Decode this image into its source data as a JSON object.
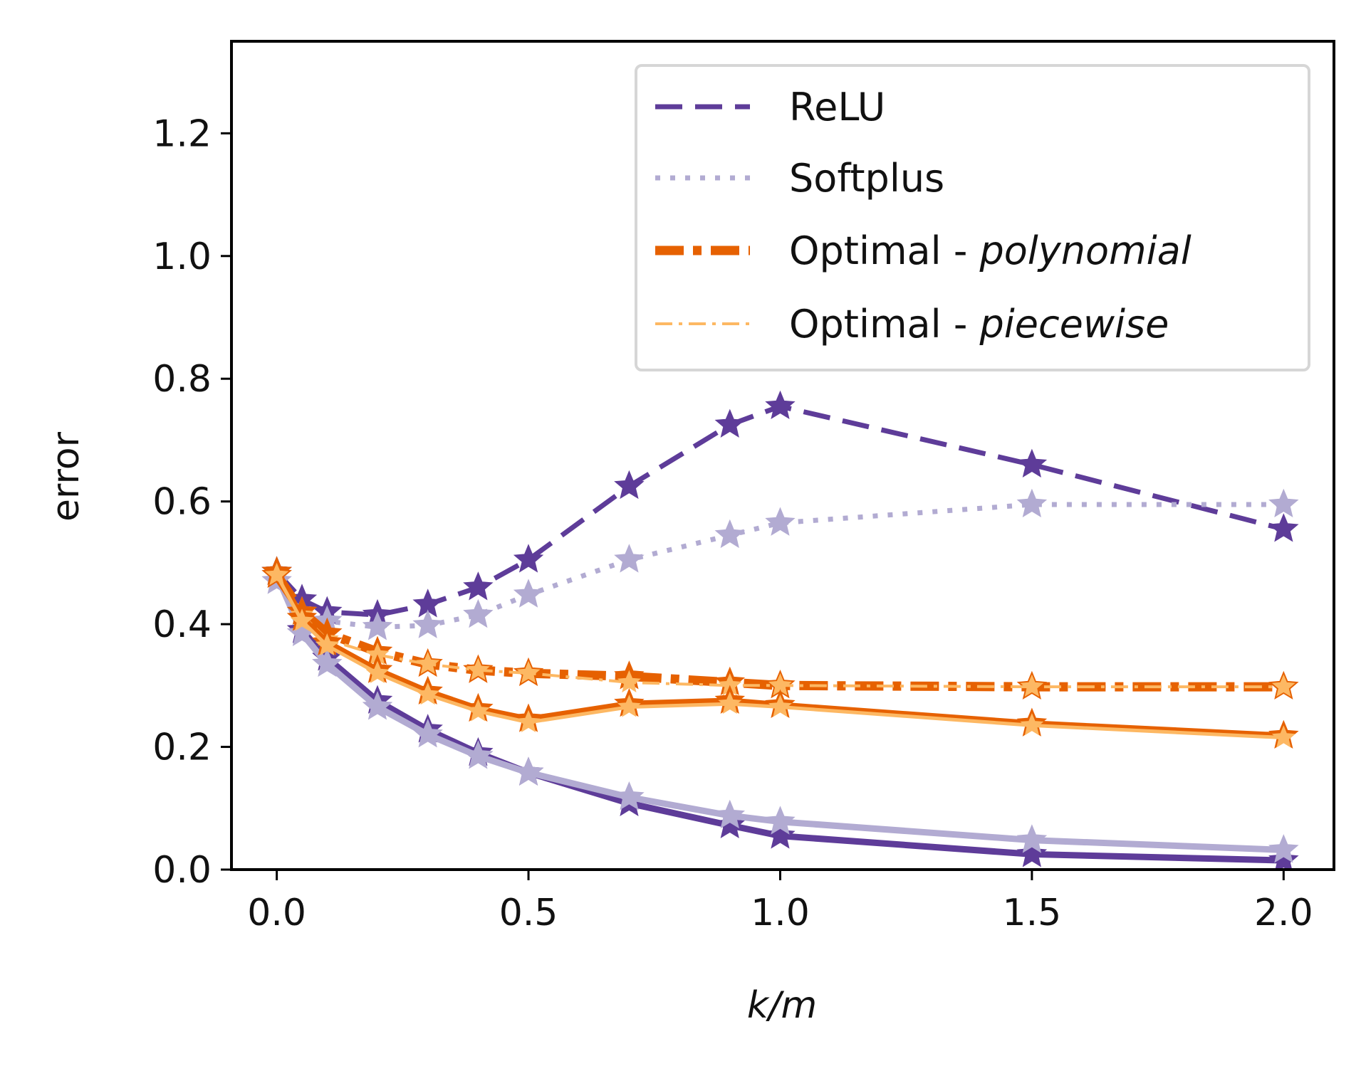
{
  "chart_data": {
    "type": "line",
    "title": "",
    "xlabel": "k/m",
    "ylabel": "error",
    "xlim": [
      -0.09,
      2.1
    ],
    "ylim": [
      0.0,
      1.35
    ],
    "xticks": [
      0.0,
      0.5,
      1.0,
      1.5,
      2.0
    ],
    "xtick_labels": [
      "0.0",
      "0.5",
      "1.0",
      "1.5",
      "2.0"
    ],
    "yticks": [
      0.0,
      0.2,
      0.4,
      0.6,
      0.8,
      1.0,
      1.2
    ],
    "ytick_labels": [
      "0.0",
      "0.2",
      "0.4",
      "0.6",
      "0.8",
      "1.0",
      "1.2"
    ],
    "grid": false,
    "legend_position": "top-right",
    "legend": [
      {
        "key": "relu",
        "prefix": "ReLU",
        "italic": ""
      },
      {
        "key": "softplus",
        "prefix": "Softplus",
        "italic": ""
      },
      {
        "key": "poly",
        "prefix": "Optimal - ",
        "italic": "polynomial"
      },
      {
        "key": "piece",
        "prefix": "Optimal - ",
        "italic": "piecewise"
      }
    ],
    "colors": {
      "relu": "#5e3c99",
      "softplus": "#b2abd2",
      "poly": "#e66101",
      "piece": "#fdb863"
    },
    "x": [
      0.0,
      0.05,
      0.1,
      0.2,
      0.3,
      0.4,
      0.5,
      0.7,
      0.9,
      1.0,
      1.5,
      2.0
    ],
    "series": [
      {
        "name": "ReLU (dashed)",
        "key": "relu",
        "style": "dashed",
        "values": [
          0.485,
          0.44,
          0.42,
          0.415,
          0.432,
          0.46,
          0.505,
          0.625,
          0.725,
          0.755,
          0.66,
          0.555
        ]
      },
      {
        "name": "Softplus (dotted)",
        "key": "softplus",
        "style": "dotted",
        "values": [
          0.47,
          0.42,
          0.405,
          0.395,
          0.398,
          0.415,
          0.448,
          0.505,
          0.545,
          0.565,
          0.595,
          0.595
        ]
      },
      {
        "name": "ReLU (solid)",
        "key": "relu",
        "style": "solid",
        "values": [
          0.485,
          0.39,
          0.345,
          0.275,
          0.228,
          0.19,
          0.158,
          0.108,
          0.072,
          0.055,
          0.025,
          0.015
        ]
      },
      {
        "name": "Softplus (solid)",
        "key": "softplus",
        "style": "solid",
        "values": [
          0.48,
          0.385,
          0.335,
          0.265,
          0.22,
          0.185,
          0.158,
          0.118,
          0.088,
          0.078,
          0.048,
          0.032
        ]
      },
      {
        "name": "Optimal - polynomial (dashdot)",
        "key": "poly",
        "style": "dashdot",
        "values": [
          0.48,
          0.42,
          0.385,
          0.355,
          0.335,
          0.325,
          0.32,
          0.315,
          0.305,
          0.3,
          0.298,
          0.298
        ]
      },
      {
        "name": "Optimal - piecewise (dashdot)",
        "key": "piece",
        "style": "thin-dashdot",
        "values": [
          0.48,
          0.415,
          0.375,
          0.35,
          0.335,
          0.325,
          0.32,
          0.305,
          0.3,
          0.3,
          0.298,
          0.298
        ]
      },
      {
        "name": "Optimal - polynomial (solid)",
        "key": "poly",
        "style": "solid",
        "values": [
          0.485,
          0.41,
          0.37,
          0.325,
          0.29,
          0.262,
          0.245,
          0.27,
          0.275,
          0.268,
          0.238,
          0.218
        ]
      },
      {
        "name": "Optimal - piecewise (solid)",
        "key": "piece",
        "style": "thin-solid",
        "values": [
          0.48,
          0.405,
          0.365,
          0.32,
          0.285,
          0.258,
          0.24,
          0.265,
          0.27,
          0.265,
          0.235,
          0.215
        ]
      }
    ]
  }
}
